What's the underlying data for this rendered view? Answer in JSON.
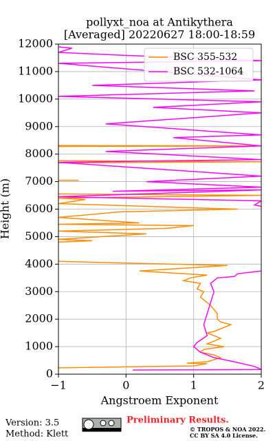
{
  "chart_data": {
    "type": "line",
    "title": "pollyxt_noa at Antikythera",
    "subtitle": "[Averaged] 20220627 18:00-18:59",
    "x_label": "Angstroem Exponent",
    "y_label": "Height (m)",
    "xlim": [
      -1,
      2
    ],
    "ylim": [
      0,
      12000
    ],
    "xticks": [
      {
        "value": -1,
        "label": "−1"
      },
      0,
      1,
      2
    ],
    "yticks": [
      0,
      1000,
      2000,
      3000,
      4000,
      5000,
      6000,
      7000,
      8000,
      9000,
      10000,
      11000,
      12000
    ],
    "grid": true,
    "legend": "upper right",
    "series": [
      {
        "name": "BSC 355-532",
        "color": "#ff8c00",
        "x": [
          -1,
          1.0,
          1.2,
          0.9,
          1.2,
          1.4,
          1.3,
          1.1,
          1.15,
          1.45,
          1.2,
          1.4,
          1.3,
          1.2,
          1.3,
          1.55,
          1.4,
          1.35,
          1.35,
          1.25,
          1.15,
          1.1,
          1.15,
          1.05,
          1.1,
          0.85,
          0.95,
          1.2,
          0.2,
          1.5,
          -1,
          null,
          -1,
          -0.5,
          -1,
          0.3,
          -1,
          0.6,
          1.0,
          -1,
          0.2,
          -1,
          -0.1,
          1.65,
          -1,
          -0.6,
          -1,
          2,
          -1,
          null,
          -1,
          -0.7,
          null,
          -1,
          2,
          -1,
          null,
          -1,
          0.8,
          2,
          -1
        ],
        "values": [
          230,
          300,
          380,
          400,
          450,
          600,
          700,
          800,
          900,
          1000,
          1100,
          1300,
          1400,
          1500,
          1550,
          1800,
          1900,
          2000,
          2200,
          2500,
          2700,
          2800,
          3000,
          3100,
          3300,
          3400,
          3500,
          3600,
          3750,
          3950,
          4100,
          null,
          4800,
          4850,
          4900,
          5100,
          5200,
          5300,
          5400,
          5450,
          5500,
          5700,
          5900,
          6000,
          6200,
          6350,
          6400,
          6500,
          6550,
          null,
          7050,
          7050,
          null,
          7680,
          7720,
          7760,
          null,
          8280,
          8290,
          8300,
          8310
        ]
      },
      {
        "name": "BSC 532-1064",
        "color": "#ff00ff",
        "x": [
          0.1,
          2,
          1.9,
          1.6,
          1.3,
          1.1,
          1.0,
          1.05,
          1.2,
          1.15,
          1.2,
          1.25,
          1.3,
          1.25,
          1.35,
          1.6,
          1.65,
          2,
          null,
          2,
          1.9,
          2,
          -1,
          2,
          -0.2,
          2,
          0.3,
          2,
          -1,
          2,
          -0.3,
          2,
          0.7,
          2,
          -0.3,
          2,
          0.4,
          2,
          -1,
          1.9,
          -0.5,
          2,
          -1,
          2,
          -0.1,
          -1,
          -0.8,
          -1
        ],
        "values": [
          150,
          170,
          280,
          450,
          600,
          800,
          1000,
          1150,
          1400,
          1800,
          2200,
          2600,
          3000,
          3300,
          3500,
          3550,
          3650,
          3750,
          null,
          6100,
          6150,
          6300,
          6450,
          6700,
          6650,
          6800,
          7000,
          7200,
          7700,
          7800,
          8100,
          8300,
          8600,
          8700,
          9100,
          9500,
          9700,
          9900,
          10100,
          10300,
          10500,
          10700,
          11300,
          11400,
          11600,
          11700,
          11850,
          11900
        ]
      }
    ],
    "footer": {
      "version": "Version: 3.5",
      "method": "Method: Klett",
      "notice": "Preliminary Results.",
      "copyright": "© TROPOS & NOA 2022.",
      "license": "CC BY SA 4.0 License."
    }
  }
}
